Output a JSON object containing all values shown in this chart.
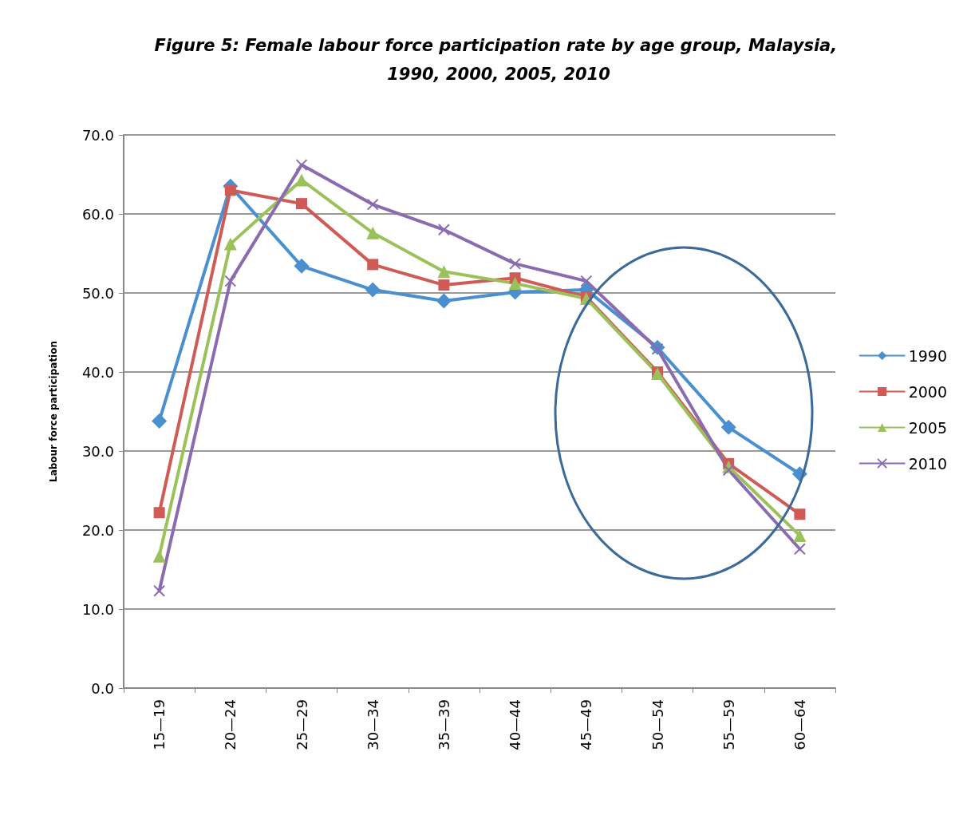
{
  "chart_data": {
    "type": "line",
    "title": "Figure 5: Female labour force participation rate by age group, Malaysia, 1990, 2000, 2005, 2010",
    "ylabel": "Labour force participation",
    "categories": [
      "15—19",
      "20—24",
      "25—29",
      "30—34",
      "35—39",
      "40—44",
      "45—49",
      "50—54",
      "55—59",
      "60—64"
    ],
    "series": [
      {
        "name": "1990",
        "color": "#4a8fd0",
        "marker": "diamond",
        "values": [
          33.8,
          63.5,
          53.4,
          50.4,
          49.0,
          50.1,
          50.4,
          43.1,
          33.0,
          27.1
        ]
      },
      {
        "name": "2000",
        "color": "#d05a55",
        "marker": "square",
        "values": [
          22.2,
          63.0,
          61.3,
          53.6,
          51.0,
          51.9,
          49.5,
          40.0,
          28.4,
          22.0
        ]
      },
      {
        "name": "2005",
        "color": "#9bc15a",
        "marker": "triangle",
        "values": [
          16.7,
          56.2,
          64.3,
          57.6,
          52.7,
          51.2,
          49.3,
          39.8,
          28.0,
          19.3
        ]
      },
      {
        "name": "2010",
        "color": "#8b6bb0",
        "marker": "cross",
        "values": [
          12.3,
          51.5,
          66.2,
          61.2,
          58.0,
          53.7,
          51.5,
          42.9,
          27.6,
          17.6
        ]
      }
    ],
    "ylim": [
      0,
      70
    ],
    "yticks": [
      {
        "value": 0,
        "label": "0.0"
      },
      {
        "value": 10,
        "label": "10.0"
      },
      {
        "value": 20,
        "label": "20.0"
      },
      {
        "value": 30,
        "label": "30.0"
      },
      {
        "value": 40,
        "label": "40.0"
      },
      {
        "value": 50,
        "label": "50.0"
      },
      {
        "value": 60,
        "label": "60.0"
      },
      {
        "value": 70,
        "label": "70.0"
      }
    ],
    "grid": "y",
    "legend": "right",
    "line_style": "solid"
  }
}
